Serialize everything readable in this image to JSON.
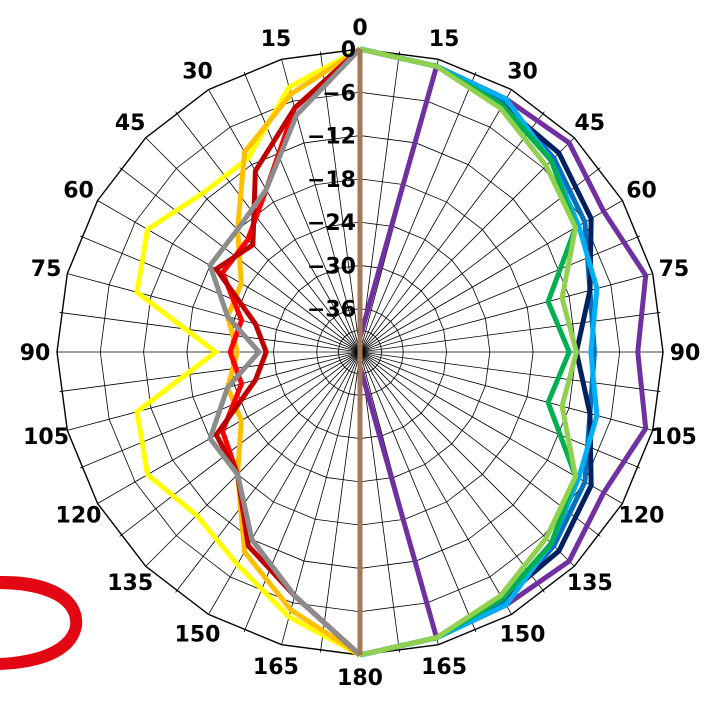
{
  "chart_data": {
    "type": "polar-line",
    "title": "",
    "angle_labels_deg": [
      0,
      15,
      30,
      45,
      60,
      75,
      90,
      105,
      120,
      135,
      150,
      165,
      180
    ],
    "angle_labels": [
      "0",
      "15",
      "30",
      "45",
      "60",
      "75",
      "90",
      "105",
      "120",
      "135",
      "150",
      "165",
      "180",
      "165",
      "150",
      "135",
      "120",
      "105",
      "90",
      "75",
      "60",
      "45",
      "30",
      "15"
    ],
    "radial_ticks": [
      0,
      -6,
      -12,
      -18,
      -24,
      -30,
      -36
    ],
    "radial_tick_labels": [
      "0",
      "−6",
      "−12",
      "−18",
      "−24",
      "−30",
      "−36"
    ],
    "r_range": [
      -42,
      0
    ],
    "grid": true,
    "series": [
      {
        "color": "#7030A0",
        "side": "right",
        "angles": [
          0,
          15,
          30,
          45,
          60,
          75,
          90,
          105,
          120,
          135,
          150,
          165,
          180
        ],
        "values": [
          -40,
          -1,
          -1.5,
          -1,
          -3,
          -1,
          -3.5,
          -1,
          -3,
          -1,
          -1.5,
          -1,
          -40
        ]
      },
      {
        "color": "#0070C0",
        "side": "right",
        "angles": [
          0,
          15,
          30,
          45,
          60,
          75,
          90,
          105,
          120,
          135,
          150,
          165,
          180
        ],
        "values": [
          0,
          -1,
          -2,
          -4,
          -6,
          -9,
          -9.5,
          -9,
          -6,
          -4,
          -2,
          -1,
          0
        ]
      },
      {
        "color": "#002060",
        "side": "right",
        "angles": [
          0,
          15,
          30,
          45,
          60,
          75,
          90,
          105,
          120,
          135,
          150,
          165,
          180
        ],
        "values": [
          0,
          -1,
          -2.5,
          -3,
          -5,
          -9,
          -12,
          -9,
          -5,
          -3,
          -2.5,
          -1,
          0
        ]
      },
      {
        "color": "#00B0F0",
        "side": "right",
        "angles": [
          0,
          15,
          30,
          45,
          60,
          75,
          90,
          105,
          120,
          135,
          150,
          165,
          180
        ],
        "values": [
          0,
          -1,
          -1.5,
          -4.5,
          -7,
          -8,
          -10,
          -8,
          -7,
          -4.5,
          -1.5,
          -1,
          0
        ]
      },
      {
        "color": "#00B050",
        "side": "right",
        "angles": [
          0,
          15,
          30,
          45,
          60,
          75,
          90,
          105,
          120,
          135,
          150,
          165,
          180
        ],
        "values": [
          0,
          -1,
          -2.5,
          -4.5,
          -7.5,
          -15,
          -13,
          -15,
          -7.5,
          -4.5,
          -2.5,
          -1,
          0
        ]
      },
      {
        "color": "#92D050",
        "side": "right",
        "angles": [
          0,
          15,
          30,
          45,
          60,
          75,
          90,
          105,
          120,
          135,
          150,
          165,
          180
        ],
        "values": [
          0,
          -1,
          -3,
          -5.5,
          -7.5,
          -13,
          -12,
          -13,
          -7.5,
          -5.5,
          -3,
          -1,
          0
        ]
      },
      {
        "color": "#FFFF00",
        "side": "left",
        "angles": [
          0,
          15,
          30,
          45,
          60,
          75,
          90,
          105,
          120,
          135,
          150,
          165,
          180
        ],
        "values": [
          0,
          -4,
          -11,
          -11,
          -8,
          -10,
          -22,
          -10,
          -8,
          -10,
          -8,
          -4,
          0
        ]
      },
      {
        "color": "#FFC000",
        "side": "left",
        "angles": [
          0,
          15,
          30,
          45,
          60,
          75,
          90,
          105,
          120,
          135,
          150,
          165,
          180
        ],
        "values": [
          0,
          -5,
          -10,
          -18,
          -23,
          -23,
          -25,
          -23,
          -23,
          -18,
          -10,
          -5,
          0
        ]
      },
      {
        "color": "#FF0000",
        "side": "left",
        "angles": [
          0,
          15,
          30,
          45,
          60,
          75,
          90,
          105,
          120,
          135,
          150,
          165,
          180
        ],
        "values": [
          0,
          -7,
          -16,
          -20,
          -20,
          -25,
          -24,
          -25,
          -20,
          -18,
          -12,
          -7,
          0
        ]
      },
      {
        "color": "#C00000",
        "side": "left",
        "angles": [
          0,
          15,
          30,
          45,
          60,
          75,
          90,
          105,
          120,
          135,
          150,
          165,
          180
        ],
        "values": [
          0,
          -7,
          -13,
          -21,
          -19,
          -27,
          -29,
          -27,
          -19,
          -18,
          -11,
          -7,
          0
        ]
      },
      {
        "color": "#8C8C8C",
        "side": "left",
        "angles": [
          0,
          15,
          30,
          45,
          60,
          75,
          90,
          105,
          120,
          135,
          150,
          165,
          180
        ],
        "values": [
          0,
          -8,
          -16,
          -18,
          -18,
          -23,
          -28,
          -23,
          -18,
          -18,
          -12,
          -7,
          0
        ]
      },
      {
        "color": "#A0785A",
        "side": "axis",
        "angles": [
          0,
          180
        ],
        "values": [
          0,
          0
        ]
      }
    ]
  }
}
